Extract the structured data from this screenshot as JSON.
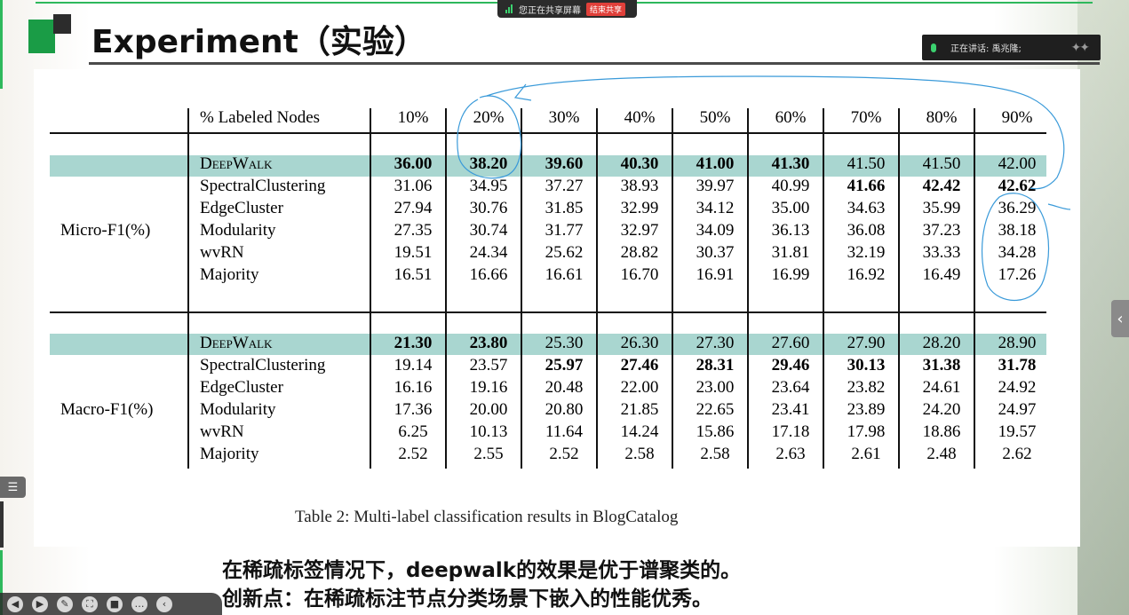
{
  "slide": {
    "title": "Experiment（实验）",
    "subtitle_line1": "在稀疏标签情况下，deepwalk的效果是优于谱聚类的。",
    "subtitle_line2": "创新点：在稀疏标注节点分类场景下嵌入的性能优秀。"
  },
  "meeting": {
    "share_status": "您正在共享屏幕",
    "stop_share": "结束共享",
    "speaker_label": "正在讲话:",
    "speaker_name": "禹兆隆;"
  },
  "table": {
    "header_label": "% Labeled Nodes",
    "columns": [
      "10%",
      "20%",
      "30%",
      "40%",
      "50%",
      "60%",
      "70%",
      "80%",
      "90%"
    ],
    "caption": "Table 2: Multi-label classification results in BlogCatalog",
    "groups": [
      {
        "metric": "Micro-F1(%)",
        "rows": [
          {
            "method": "DeepWalk",
            "values": [
              "36.00",
              "38.20",
              "39.60",
              "40.30",
              "41.00",
              "41.30",
              "41.50",
              "41.50",
              "42.00"
            ],
            "bold": [
              true,
              true,
              true,
              true,
              true,
              true,
              false,
              false,
              false
            ]
          },
          {
            "method": "SpectralClustering",
            "values": [
              "31.06",
              "34.95",
              "37.27",
              "38.93",
              "39.97",
              "40.99",
              "41.66",
              "42.42",
              "42.62"
            ],
            "bold": [
              false,
              false,
              false,
              false,
              false,
              false,
              true,
              true,
              true
            ]
          },
          {
            "method": "EdgeCluster",
            "values": [
              "27.94",
              "30.76",
              "31.85",
              "32.99",
              "34.12",
              "35.00",
              "34.63",
              "35.99",
              "36.29"
            ],
            "bold": [
              false,
              false,
              false,
              false,
              false,
              false,
              false,
              false,
              false
            ]
          },
          {
            "method": "Modularity",
            "values": [
              "27.35",
              "30.74",
              "31.77",
              "32.97",
              "34.09",
              "36.13",
              "36.08",
              "37.23",
              "38.18"
            ],
            "bold": [
              false,
              false,
              false,
              false,
              false,
              false,
              false,
              false,
              false
            ]
          },
          {
            "method": "wvRN",
            "values": [
              "19.51",
              "24.34",
              "25.62",
              "28.82",
              "30.37",
              "31.81",
              "32.19",
              "33.33",
              "34.28"
            ],
            "bold": [
              false,
              false,
              false,
              false,
              false,
              false,
              false,
              false,
              false
            ]
          },
          {
            "method": "Majority",
            "values": [
              "16.51",
              "16.66",
              "16.61",
              "16.70",
              "16.91",
              "16.99",
              "16.92",
              "16.49",
              "17.26"
            ],
            "bold": [
              false,
              false,
              false,
              false,
              false,
              false,
              false,
              false,
              false
            ]
          }
        ]
      },
      {
        "metric": "Macro-F1(%)",
        "rows": [
          {
            "method": "DeepWalk",
            "values": [
              "21.30",
              "23.80",
              "25.30",
              "26.30",
              "27.30",
              "27.60",
              "27.90",
              "28.20",
              "28.90"
            ],
            "bold": [
              true,
              true,
              false,
              false,
              false,
              false,
              false,
              false,
              false
            ]
          },
          {
            "method": "SpectralClustering",
            "values": [
              "19.14",
              "23.57",
              "25.97",
              "27.46",
              "28.31",
              "29.46",
              "30.13",
              "31.38",
              "31.78"
            ],
            "bold": [
              false,
              false,
              true,
              true,
              true,
              true,
              true,
              true,
              true
            ]
          },
          {
            "method": "EdgeCluster",
            "values": [
              "16.16",
              "19.16",
              "20.48",
              "22.00",
              "23.00",
              "23.64",
              "23.82",
              "24.61",
              "24.92"
            ],
            "bold": [
              false,
              false,
              false,
              false,
              false,
              false,
              false,
              false,
              false
            ]
          },
          {
            "method": "Modularity",
            "values": [
              "17.36",
              "20.00",
              "20.80",
              "21.85",
              "22.65",
              "23.41",
              "23.89",
              "24.20",
              "24.97"
            ],
            "bold": [
              false,
              false,
              false,
              false,
              false,
              false,
              false,
              false,
              false
            ]
          },
          {
            "method": "wvRN",
            "values": [
              "6.25",
              "10.13",
              "11.64",
              "14.24",
              "15.86",
              "17.18",
              "17.98",
              "18.86",
              "19.57"
            ],
            "bold": [
              false,
              false,
              false,
              false,
              false,
              false,
              false,
              false,
              false
            ]
          },
          {
            "method": "Majority",
            "values": [
              "2.52",
              "2.55",
              "2.52",
              "2.58",
              "2.58",
              "2.63",
              "2.61",
              "2.48",
              "2.62"
            ],
            "bold": [
              false,
              false,
              false,
              false,
              false,
              false,
              false,
              false,
              false
            ]
          }
        ]
      }
    ]
  },
  "colors": {
    "accent_green": "#1a9c46",
    "highlight_row": "#a9d6d0",
    "annotation_ink": "#3a9ad9"
  },
  "icons": [
    "signal-icon",
    "mic-icon",
    "more-icon",
    "chevron-left-icon",
    "list-icon",
    "prev-icon",
    "play-icon",
    "pen-icon",
    "fullscreen-icon",
    "camera-icon",
    "more-dots-icon",
    "collapse-icon"
  ]
}
